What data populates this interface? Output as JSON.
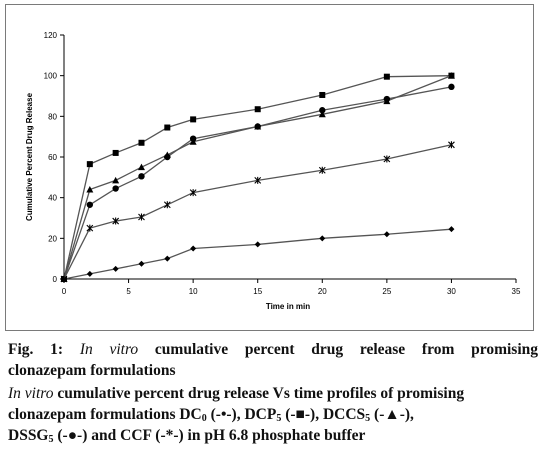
{
  "chart_data": {
    "type": "line",
    "title": "",
    "xlabel": "Time in min",
    "ylabel": "Cumulative Percent Drug Release",
    "xlim": [
      0,
      35
    ],
    "ylim": [
      0,
      120
    ],
    "xticks": [
      "0",
      "5",
      "10",
      "15",
      "20",
      "25",
      "30",
      "35"
    ],
    "yticks": [
      "0",
      "20",
      "40",
      "60",
      "80",
      "100",
      "120"
    ],
    "grid": false,
    "legend": "none",
    "series": [
      {
        "marker": "diamond",
        "color": "#000000",
        "line": "#555555",
        "x": [
          0,
          2,
          4,
          6,
          8,
          10,
          15,
          20,
          25,
          30
        ],
        "y": [
          0,
          2.5,
          5,
          7.5,
          10,
          15,
          17,
          20,
          22,
          24.5
        ]
      },
      {
        "marker": "square",
        "color": "#000000",
        "line": "#555555",
        "x": [
          0,
          2,
          4,
          6,
          8,
          10,
          15,
          20,
          25,
          30
        ],
        "y": [
          0,
          56.5,
          62,
          67,
          74.5,
          78.5,
          83.5,
          90.5,
          99.5,
          100
        ]
      },
      {
        "marker": "triangle",
        "color": "#000000",
        "line": "#555555",
        "x": [
          0,
          2,
          4,
          6,
          8,
          10,
          15,
          20,
          25,
          30
        ],
        "y": [
          0,
          44,
          48.5,
          55,
          61,
          67.5,
          75,
          81,
          87.5,
          100
        ]
      },
      {
        "marker": "circle",
        "color": "#000000",
        "line": "#555555",
        "x": [
          0,
          2,
          4,
          6,
          8,
          10,
          15,
          20,
          25,
          30
        ],
        "y": [
          0,
          36.5,
          44.5,
          50.5,
          60,
          69,
          75,
          83,
          88.5,
          94.5
        ]
      },
      {
        "marker": "star",
        "color": "#000000",
        "line": "#555555",
        "x": [
          0,
          2,
          4,
          6,
          8,
          10,
          15,
          20,
          25,
          30
        ],
        "y": [
          0,
          25,
          28.5,
          30.5,
          36.5,
          42.5,
          48.5,
          53.5,
          59,
          66
        ]
      }
    ]
  },
  "caption": {
    "fig_label": "Fig. 1:",
    "line1_italic": "In vitro",
    "line1_rest": "cumulative percent drug release from promising",
    "line2": "clonazepam formulations",
    "line3_italic": "In vitro",
    "line3_rest": "cumulative percent drug release Vs time profiles of promising",
    "line4_a": "clonazepam formulations DC",
    "line4_a_sub": "0",
    "line4_a_sym": " (-•-), DCP",
    "line4_b_sub": "5",
    "line4_b_sym": " (-■-), DCCS",
    "line4_c_sub": "5",
    "line4_c_sym": " (-▲-),",
    "line5_a": "DSSG",
    "line5_a_sub": "5",
    "line5_a_sym": " (-●-) and CCF (-*-) in pH 6.8 phosphate buffer"
  }
}
